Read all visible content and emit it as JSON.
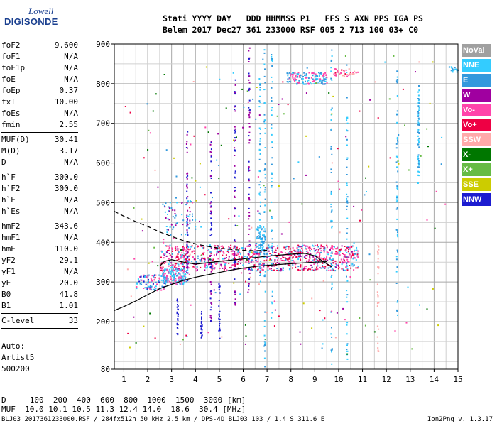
{
  "logo": {
    "line1": "Lowell",
    "line2": "DIGISONDE"
  },
  "header": {
    "row1": "Stati YYYY DAY   DDD HHMMSS P1   FFS S AXN PPS IGA PS",
    "row2": "Belem 2017 Dec27 361 233000 RSF 005 2 713 100 03+ C0"
  },
  "params": [
    {
      "label": "foF2",
      "value": "9.600"
    },
    {
      "label": "foF1",
      "value": "N/A"
    },
    {
      "label": "foF1p",
      "value": "N/A"
    },
    {
      "label": "foE",
      "value": "N/A"
    },
    {
      "label": "foEp",
      "value": "0.37"
    },
    {
      "label": "fxI",
      "value": "10.00"
    },
    {
      "label": "foEs",
      "value": "N/A"
    },
    {
      "label": "fmin",
      "value": "2.55"
    },
    {
      "sep": true
    },
    {
      "label": "MUF(D)",
      "value": "30.41"
    },
    {
      "label": "M(D)",
      "value": "3.17"
    },
    {
      "label": "D",
      "value": "N/A"
    },
    {
      "sep": true
    },
    {
      "label": "h`F",
      "value": "300.0"
    },
    {
      "label": "h`F2",
      "value": "300.0"
    },
    {
      "label": "h`E",
      "value": "N/A"
    },
    {
      "label": "h`Es",
      "value": "N/A"
    },
    {
      "sep": true
    },
    {
      "label": "hmF2",
      "value": "343.6"
    },
    {
      "label": "hmF1",
      "value": "N/A"
    },
    {
      "label": "hmE",
      "value": "110.0"
    },
    {
      "label": "yF2",
      "value": "29.1"
    },
    {
      "label": "yF1",
      "value": "N/A"
    },
    {
      "label": "yE",
      "value": "20.0"
    },
    {
      "label": "B0",
      "value": "41.8"
    },
    {
      "label": "B1",
      "value": "1.01"
    },
    {
      "sep": true
    },
    {
      "label": "C-level",
      "value": "33"
    },
    {
      "sep": true
    }
  ],
  "auto": {
    "line1": "Auto:",
    "line2": "Artist5",
    "line3": "500200"
  },
  "legend": [
    {
      "label": "NoVal",
      "color": "#a0a0a0"
    },
    {
      "label": "NNE",
      "color": "#33ccff"
    },
    {
      "label": "E",
      "color": "#3399dd"
    },
    {
      "label": "W",
      "color": "#a000a0"
    },
    {
      "label": "Vo-",
      "color": "#ff44aa"
    },
    {
      "label": "Vo+",
      "color": "#ee0044"
    },
    {
      "label": "SSW",
      "color": "#ffaaaa"
    },
    {
      "label": "X-",
      "color": "#007700"
    },
    {
      "label": "X+",
      "color": "#66bb44"
    },
    {
      "label": "SSE",
      "color": "#cccc00"
    },
    {
      "label": "NNW",
      "color": "#1c1cd0"
    }
  ],
  "bottom": {
    "row1": "D     100  200  400  600  800  1000  1500  3000 [km]",
    "row2": "MUF  10.0 10.1 10.5 11.3 12.4 14.0  18.6  30.4 [MHz]"
  },
  "footer": "BLJ03_2017361233000.RSF / 284fx512h 50 kHz 2.5 km / DPS-4D BLJ03 103 / 1.4 S 311.6 E",
  "version": "Ion2Png v. 1.3.17",
  "chart_data": {
    "type": "scatter",
    "xlim": [
      0.6,
      15
    ],
    "ylim": [
      80,
      900
    ],
    "x_ticks": [
      1,
      2,
      3,
      4,
      5,
      6,
      7,
      8,
      9,
      10,
      11,
      12,
      13,
      14,
      15
    ],
    "y_ticks": [
      80,
      200,
      300,
      400,
      500,
      600,
      700,
      800,
      900
    ],
    "grid": true,
    "legend_position": "right",
    "profile_solid": [
      [
        0.6,
        228
      ],
      [
        1.0,
        238
      ],
      [
        1.5,
        252
      ],
      [
        2.0,
        268
      ],
      [
        2.5,
        283
      ],
      [
        3.0,
        294
      ],
      [
        3.5,
        304
      ],
      [
        4.0,
        312
      ],
      [
        4.5,
        318
      ],
      [
        5.0,
        324
      ],
      [
        5.5,
        330
      ],
      [
        6.0,
        335
      ],
      [
        6.5,
        339
      ],
      [
        7.0,
        342
      ],
      [
        7.5,
        344
      ],
      [
        8.0,
        346
      ],
      [
        8.5,
        348
      ],
      [
        9.0,
        350
      ],
      [
        9.5,
        351
      ]
    ],
    "trace_solid": [
      [
        2.5,
        340
      ],
      [
        2.7,
        352
      ],
      [
        3.0,
        356
      ],
      [
        3.5,
        350
      ],
      [
        4.0,
        345
      ],
      [
        5.0,
        352
      ],
      [
        6.0,
        358
      ],
      [
        7.0,
        365
      ],
      [
        8.0,
        370
      ],
      [
        8.6,
        372
      ],
      [
        9.0,
        366
      ],
      [
        9.4,
        350
      ],
      [
        9.7,
        338
      ]
    ],
    "trace_dashed": [
      [
        0.6,
        478
      ],
      [
        1.0,
        466
      ],
      [
        1.5,
        452
      ],
      [
        2.0,
        440
      ],
      [
        2.5,
        426
      ],
      [
        3.0,
        415
      ],
      [
        3.5,
        404
      ],
      [
        4.0,
        396
      ],
      [
        4.5,
        390
      ],
      [
        5.0,
        385
      ],
      [
        5.5,
        382
      ],
      [
        6.0,
        380
      ],
      [
        6.5,
        379
      ],
      [
        7.0,
        380
      ]
    ]
  }
}
